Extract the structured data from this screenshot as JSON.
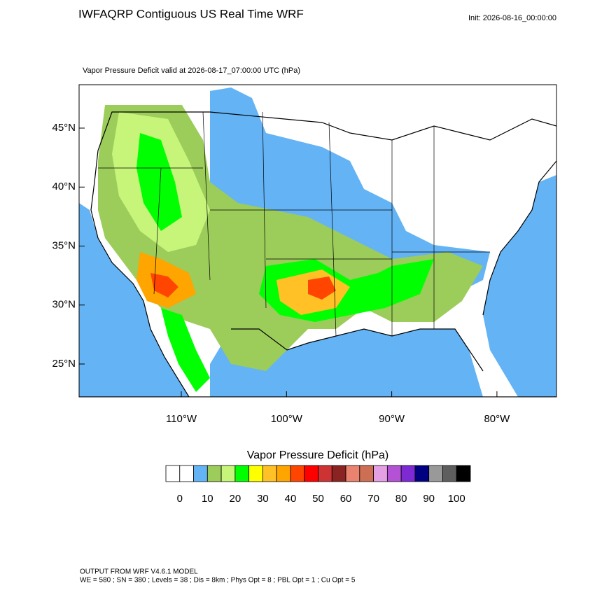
{
  "header": {
    "title": "IWFAQRP Contiguous US Real Time WRF",
    "init": "Init: 2026-08-16_00:00:00",
    "subtitle": "Vapor Pressure Deficit valid at 2026-08-17_07:00:00 UTC   (hPa)"
  },
  "map": {
    "lat_ticks": [
      {
        "value": 45,
        "label": "45°N"
      },
      {
        "value": 40,
        "label": "40°N"
      },
      {
        "value": 35,
        "label": "35°N"
      },
      {
        "value": 30,
        "label": "30°N"
      },
      {
        "value": 25,
        "label": "25°N"
      }
    ],
    "lon_ticks": [
      {
        "value": -110,
        "label": "110°W"
      },
      {
        "value": -100,
        "label": "100°W"
      },
      {
        "value": -90,
        "label": "90°W"
      },
      {
        "value": -80,
        "label": "80°W"
      }
    ]
  },
  "colorbar": {
    "title": "Vapor Pressure Deficit  (hPa)",
    "colors": [
      "#ffffff",
      "#ffffff",
      "#63b3f5",
      "#9ccc5a",
      "#c6f57a",
      "#00ff00",
      "#ffff00",
      "#ffc125",
      "#ffa500",
      "#ff4500",
      "#ff0000",
      "#cd3333",
      "#8b2323",
      "#e9826e",
      "#cd6f55",
      "#e3a0e3",
      "#b452d6",
      "#7d2ad4",
      "#000080",
      "#999999",
      "#5e5e5e",
      "#000000"
    ],
    "labels": [
      "0",
      "10",
      "20",
      "30",
      "40",
      "50",
      "60",
      "70",
      "80",
      "90",
      "100"
    ]
  },
  "footer": {
    "line1": "OUTPUT FROM WRF V4.6.1 MODEL",
    "line2": "WE = 580 ; SN = 380 ; Levels = 38 ; Dis = 8km ; Phys Opt = 8 ; PBL Opt = 1 ; Cu Opt = 5"
  }
}
